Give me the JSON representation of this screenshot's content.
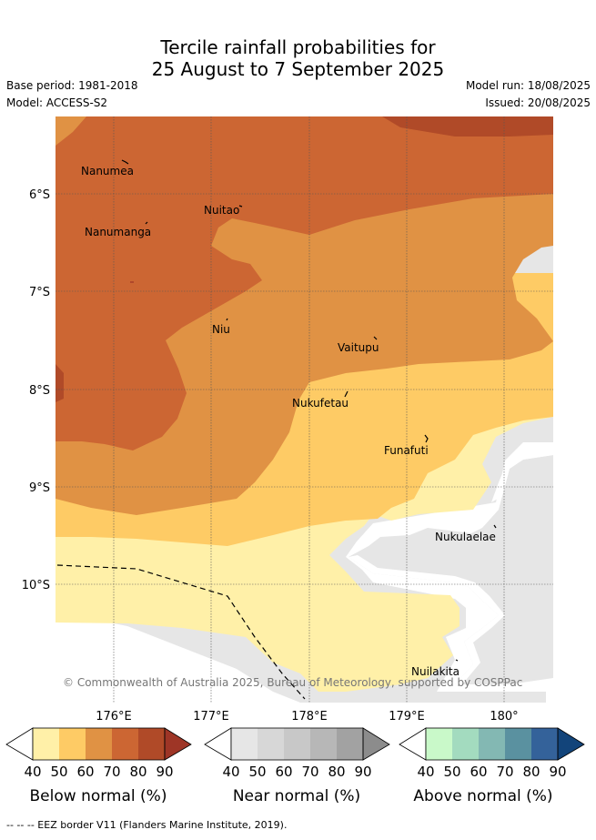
{
  "title": {
    "line1": "Tercile rainfall probabilities for",
    "line2": "25 August to 7 September 2025"
  },
  "meta": {
    "base_period": "Base period: 1981-2018",
    "model": "Model: ACCESS-S2",
    "model_run": "Model run: 18/08/2025",
    "issued": "Issued: 20/08/2025"
  },
  "map": {
    "lat_labels": [
      "6°S",
      "7°S",
      "8°S",
      "9°S",
      "10°S"
    ],
    "lon_labels": [
      "176°E",
      "177°E",
      "178°E",
      "179°E",
      "180°"
    ],
    "places": [
      {
        "name": "Nanumea"
      },
      {
        "name": "Nuitao"
      },
      {
        "name": "Nanumanga"
      },
      {
        "name": "Niu"
      },
      {
        "name": "Vaitupu"
      },
      {
        "name": "Nukufetau"
      },
      {
        "name": "Funafuti"
      },
      {
        "name": "Nukulaelae"
      },
      {
        "name": "Nuilakita"
      }
    ],
    "copyright": "© Commonwealth of Australia 2025, Bureau of Meteorology, supported by COSPPac"
  },
  "legends": [
    {
      "title": "Below normal (%)",
      "ticks": [
        "40",
        "50",
        "60",
        "70",
        "80",
        "90"
      ],
      "colors": [
        "#fff0a8",
        "#fecb65",
        "#e09244",
        "#cc6633",
        "#b04a28",
        "#9e3526"
      ]
    },
    {
      "title": "Near normal (%)",
      "ticks": [
        "40",
        "50",
        "60",
        "70",
        "80",
        "90"
      ],
      "colors": [
        "#e6e6e6",
        "#d7d7d7",
        "#c8c8c8",
        "#b7b7b7",
        "#a2a2a2",
        "#8c8c8c"
      ]
    },
    {
      "title": "Above normal (%)",
      "ticks": [
        "40",
        "50",
        "60",
        "70",
        "80",
        "90"
      ],
      "colors": [
        "#c9f9c9",
        "#a3dbbf",
        "#83b8b3",
        "#5a91a0",
        "#34629a",
        "#12447a"
      ]
    }
  ],
  "footnote": "--  --  -- EEZ border V11 (Flanders Marine Institute, 2019).",
  "colors": {
    "frame_background": "#ffffff",
    "grid": "#555555"
  }
}
